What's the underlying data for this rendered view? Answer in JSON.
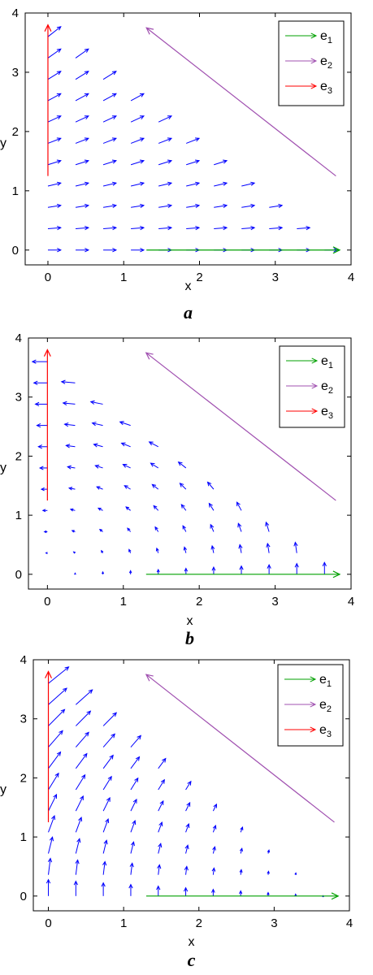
{
  "chart_data": [
    {
      "type": "vector-field",
      "panel_label": "a",
      "xlabel": "x",
      "ylabel": "y",
      "xlim": [
        -0.3,
        4.0
      ],
      "ylim": [
        -0.25,
        4.0
      ],
      "xticks": [
        0,
        1,
        2,
        3,
        4
      ],
      "yticks": [
        0,
        1,
        2,
        3,
        4
      ],
      "grid": false,
      "legend": {
        "position": "top-right",
        "entries": [
          {
            "label": "e",
            "sub": "1",
            "color": "#00a000"
          },
          {
            "label": "e",
            "sub": "2",
            "color": "#a050b0"
          },
          {
            "label": "e",
            "sub": "3",
            "color": "#ff0000"
          }
        ]
      },
      "field": {
        "u": "1",
        "v": "y/3.6",
        "scale": 0.17,
        "color": "#0000ff"
      },
      "eigen_lines": [
        {
          "name": "e1",
          "from": [
            1.3,
            0
          ],
          "to": [
            3.85,
            0
          ],
          "color": "#00a000"
        },
        {
          "name": "e2",
          "from": [
            3.8,
            1.25
          ],
          "to": [
            1.3,
            3.75
          ],
          "color": "#a050b0"
        },
        {
          "name": "e3",
          "from": [
            0,
            1.25
          ],
          "to": [
            0,
            3.8
          ],
          "color": "#ff0000"
        }
      ]
    },
    {
      "type": "vector-field",
      "panel_label": "b",
      "xlabel": "x",
      "ylabel": "y",
      "xlim": [
        -0.25,
        4.0
      ],
      "ylim": [
        -0.25,
        4.0
      ],
      "xticks": [
        0,
        1,
        2,
        3,
        4
      ],
      "yticks": [
        0,
        1,
        2,
        3,
        4
      ],
      "grid": false,
      "legend": {
        "position": "top-right",
        "entries": [
          {
            "label": "e",
            "sub": "1",
            "color": "#00a000"
          },
          {
            "label": "e",
            "sub": "2",
            "color": "#a050b0"
          },
          {
            "label": "e",
            "sub": "3",
            "color": "#ff0000"
          }
        ]
      },
      "field": {
        "u": "-y",
        "v": "x",
        "scale": 0.055,
        "color": "#0000ff"
      },
      "eigen_lines": [
        {
          "name": "e1",
          "from": [
            1.3,
            0
          ],
          "to": [
            3.85,
            0
          ],
          "color": "#00a000"
        },
        {
          "name": "e2",
          "from": [
            3.8,
            1.25
          ],
          "to": [
            1.3,
            3.75
          ],
          "color": "#a050b0"
        },
        {
          "name": "e3",
          "from": [
            0,
            1.25
          ],
          "to": [
            0,
            3.8
          ],
          "color": "#ff0000"
        }
      ]
    },
    {
      "type": "vector-field",
      "panel_label": "c",
      "xlabel": "x",
      "ylabel": "y",
      "xlim": [
        -0.2,
        4.0
      ],
      "ylim": [
        -0.25,
        4.0
      ],
      "xticks": [
        0,
        1,
        2,
        3,
        4
      ],
      "yticks": [
        0,
        1,
        2,
        3,
        4
      ],
      "grid": false,
      "legend": {
        "position": "top-right",
        "entries": [
          {
            "label": "e",
            "sub": "1",
            "color": "#00a000"
          },
          {
            "label": "e",
            "sub": "2",
            "color": "#a050b0"
          },
          {
            "label": "e",
            "sub": "3",
            "color": "#ff0000"
          }
        ]
      },
      "field": {
        "u": "(3.7-x)*y/3.7",
        "v": "(3.7-x)",
        "scale": 0.075,
        "color": "#0000ff"
      },
      "eigen_lines": [
        {
          "name": "e1",
          "from": [
            1.3,
            0
          ],
          "to": [
            3.85,
            0
          ],
          "color": "#00a000"
        },
        {
          "name": "e2",
          "from": [
            3.8,
            1.25
          ],
          "to": [
            1.3,
            3.75
          ],
          "color": "#a050b0"
        },
        {
          "name": "e3",
          "from": [
            0,
            1.25
          ],
          "to": [
            0,
            3.8
          ],
          "color": "#ff0000"
        }
      ]
    }
  ]
}
